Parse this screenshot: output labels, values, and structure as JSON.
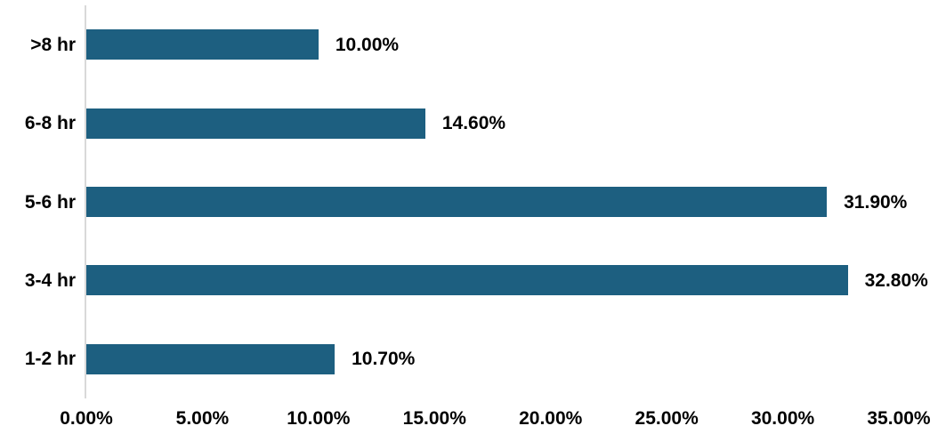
{
  "chart_data": {
    "type": "bar",
    "orientation": "horizontal",
    "title": "",
    "xlabel": "",
    "ylabel": "",
    "legend": "none",
    "grid": "off",
    "categories": [
      ">8 hr",
      "6-8 hr",
      "5-6 hr",
      "3-4 hr",
      "1-2 hr"
    ],
    "values": [
      10.0,
      14.6,
      31.9,
      32.8,
      10.7
    ],
    "value_labels": [
      "10.00%",
      "14.60%",
      "31.90%",
      "32.80%",
      "10.70%"
    ],
    "x_ticks": [
      "0.00%",
      "5.00%",
      "10.00%",
      "15.00%",
      "20.00%",
      "25.00%",
      "30.00%",
      "35.00%"
    ],
    "xlim": [
      0,
      35
    ],
    "bar_color": "#1D5F80",
    "axis_line_color": "#D9D9D9",
    "label_color": "#000000"
  }
}
